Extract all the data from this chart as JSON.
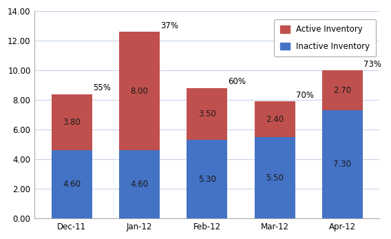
{
  "categories": [
    "Dec-11",
    "Jan-12",
    "Feb-12",
    "Mar-12",
    "Apr-12"
  ],
  "inactive": [
    4.6,
    4.6,
    5.3,
    5.5,
    7.3
  ],
  "active": [
    3.8,
    8.0,
    3.5,
    2.4,
    2.7
  ],
  "percentages": [
    "55%",
    "37%",
    "60%",
    "70%",
    "73%"
  ],
  "inactive_color": "#4472C4",
  "active_color": "#C0504D",
  "ylim": [
    0,
    14.0
  ],
  "yticks": [
    0.0,
    2.0,
    4.0,
    6.0,
    8.0,
    10.0,
    12.0,
    14.0
  ],
  "legend_active": "Active Inventory",
  "legend_inactive": "Inactive Inventory",
  "background_color": "#FFFFFF",
  "plot_background": "#FFFFFF",
  "bar_width": 0.6,
  "grid_color": "#C8D4E8",
  "label_color": "#1a1a1a",
  "border_color": "#AAAAAA",
  "outer_border_color": "#BBBBCC"
}
